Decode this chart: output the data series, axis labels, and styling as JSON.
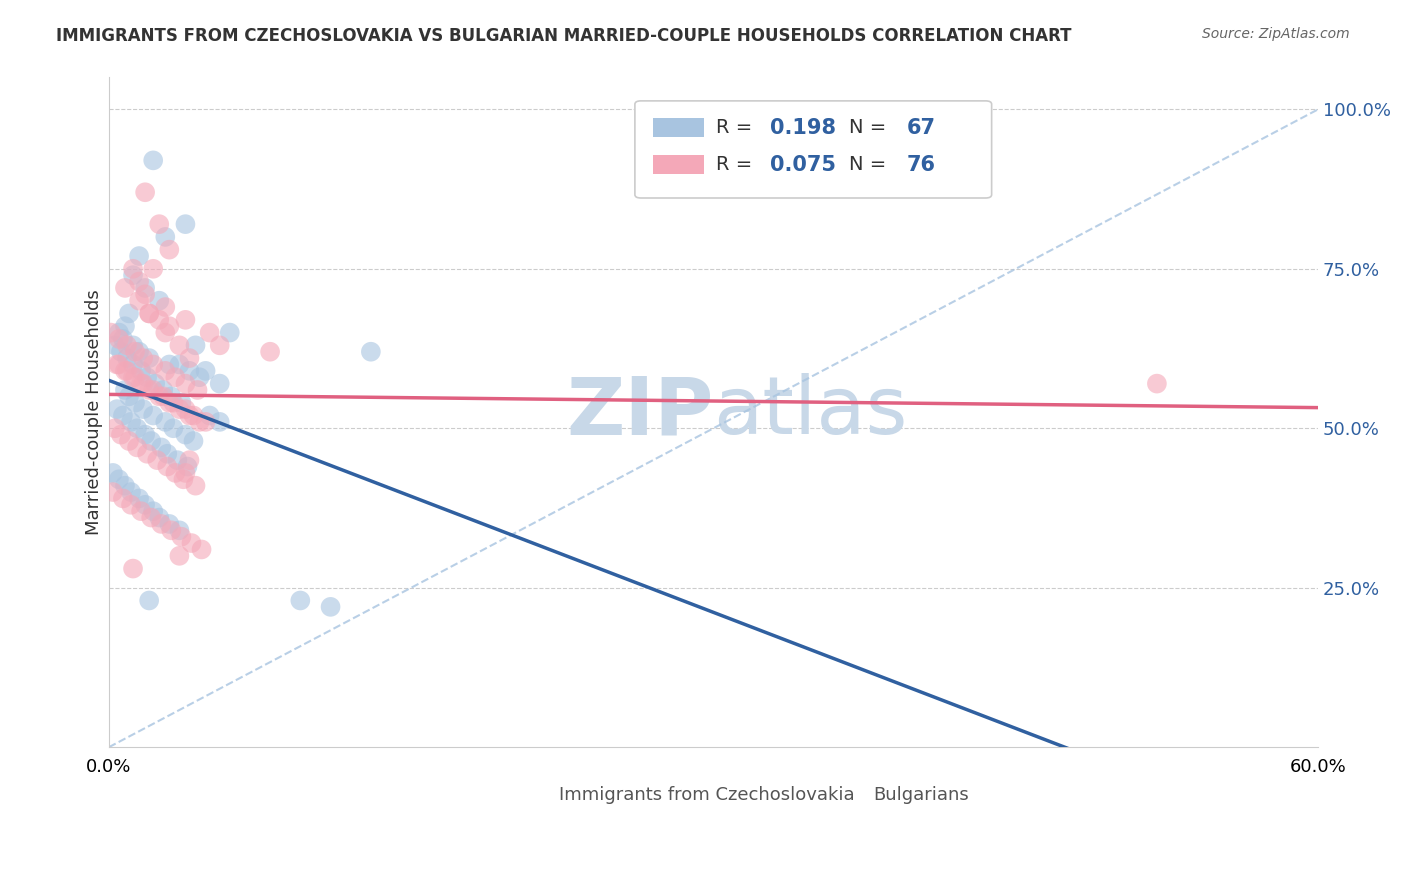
{
  "title": "IMMIGRANTS FROM CZECHOSLOVAKIA VS BULGARIAN MARRIED-COUPLE HOUSEHOLDS CORRELATION CHART",
  "source": "Source: ZipAtlas.com",
  "ylabel": "Married-couple Households",
  "xlim": [
    0.0,
    0.6
  ],
  "ylim": [
    0.0,
    1.05
  ],
  "xtick_labels": [
    "0.0%",
    "60.0%"
  ],
  "ytick_labels_right": [
    "25.0%",
    "50.0%",
    "75.0%",
    "100.0%"
  ],
  "ytick_vals_right": [
    0.25,
    0.5,
    0.75,
    1.0
  ],
  "r1": 0.198,
  "n1": 67,
  "r2": 0.075,
  "n2": 76,
  "color1": "#a8c4e0",
  "color2": "#f4a8b8",
  "line_color1": "#3060a0",
  "line_color2": "#e06080",
  "watermark_zip": "ZIP",
  "watermark_atlas": "atlas",
  "watermark_color": "#c8d8e8",
  "legend_label1": "Immigrants from Czechoslovakia",
  "legend_label2": "Bulgarians",
  "blue_scatter_x": [
    0.022,
    0.038,
    0.028,
    0.015,
    0.012,
    0.018,
    0.025,
    0.01,
    0.008,
    0.005,
    0.007,
    0.012,
    0.015,
    0.02,
    0.03,
    0.035,
    0.04,
    0.045,
    0.055,
    0.06,
    0.008,
    0.01,
    0.013,
    0.017,
    0.022,
    0.028,
    0.032,
    0.038,
    0.042,
    0.048,
    0.003,
    0.006,
    0.009,
    0.012,
    0.016,
    0.019,
    0.023,
    0.027,
    0.031,
    0.036,
    0.004,
    0.007,
    0.011,
    0.014,
    0.018,
    0.021,
    0.026,
    0.029,
    0.034,
    0.039,
    0.002,
    0.005,
    0.008,
    0.011,
    0.015,
    0.018,
    0.022,
    0.025,
    0.03,
    0.035,
    0.05,
    0.055,
    0.043,
    0.02,
    0.095,
    0.11,
    0.13
  ],
  "blue_scatter_y": [
    0.92,
    0.82,
    0.8,
    0.77,
    0.74,
    0.72,
    0.7,
    0.68,
    0.66,
    0.65,
    0.64,
    0.63,
    0.62,
    0.61,
    0.6,
    0.6,
    0.59,
    0.58,
    0.57,
    0.65,
    0.56,
    0.55,
    0.54,
    0.53,
    0.52,
    0.51,
    0.5,
    0.49,
    0.48,
    0.59,
    0.63,
    0.62,
    0.61,
    0.6,
    0.59,
    0.58,
    0.57,
    0.56,
    0.55,
    0.54,
    0.53,
    0.52,
    0.51,
    0.5,
    0.49,
    0.48,
    0.47,
    0.46,
    0.45,
    0.44,
    0.43,
    0.42,
    0.41,
    0.4,
    0.39,
    0.38,
    0.37,
    0.36,
    0.35,
    0.34,
    0.52,
    0.51,
    0.63,
    0.23,
    0.23,
    0.22,
    0.62
  ],
  "pink_scatter_x": [
    0.018,
    0.025,
    0.03,
    0.012,
    0.008,
    0.015,
    0.02,
    0.028,
    0.035,
    0.04,
    0.005,
    0.009,
    0.013,
    0.017,
    0.022,
    0.027,
    0.032,
    0.038,
    0.042,
    0.048,
    0.003,
    0.006,
    0.01,
    0.014,
    0.019,
    0.024,
    0.029,
    0.033,
    0.037,
    0.043,
    0.002,
    0.007,
    0.011,
    0.016,
    0.021,
    0.026,
    0.031,
    0.036,
    0.041,
    0.046,
    0.004,
    0.008,
    0.012,
    0.016,
    0.02,
    0.025,
    0.03,
    0.035,
    0.04,
    0.045,
    0.001,
    0.005,
    0.009,
    0.013,
    0.017,
    0.022,
    0.028,
    0.033,
    0.038,
    0.044,
    0.02,
    0.025,
    0.03,
    0.05,
    0.055,
    0.015,
    0.018,
    0.028,
    0.038,
    0.022,
    0.52,
    0.038,
    0.035,
    0.012,
    0.04,
    0.08
  ],
  "pink_scatter_y": [
    0.87,
    0.82,
    0.78,
    0.75,
    0.72,
    0.7,
    0.68,
    0.65,
    0.63,
    0.61,
    0.6,
    0.59,
    0.58,
    0.57,
    0.56,
    0.55,
    0.54,
    0.53,
    0.52,
    0.51,
    0.5,
    0.49,
    0.48,
    0.47,
    0.46,
    0.45,
    0.44,
    0.43,
    0.42,
    0.41,
    0.4,
    0.39,
    0.38,
    0.37,
    0.36,
    0.35,
    0.34,
    0.33,
    0.32,
    0.31,
    0.6,
    0.59,
    0.58,
    0.57,
    0.56,
    0.55,
    0.54,
    0.53,
    0.52,
    0.51,
    0.65,
    0.64,
    0.63,
    0.62,
    0.61,
    0.6,
    0.59,
    0.58,
    0.57,
    0.56,
    0.68,
    0.67,
    0.66,
    0.65,
    0.63,
    0.73,
    0.71,
    0.69,
    0.67,
    0.75,
    0.57,
    0.43,
    0.3,
    0.28,
    0.45,
    0.62
  ]
}
